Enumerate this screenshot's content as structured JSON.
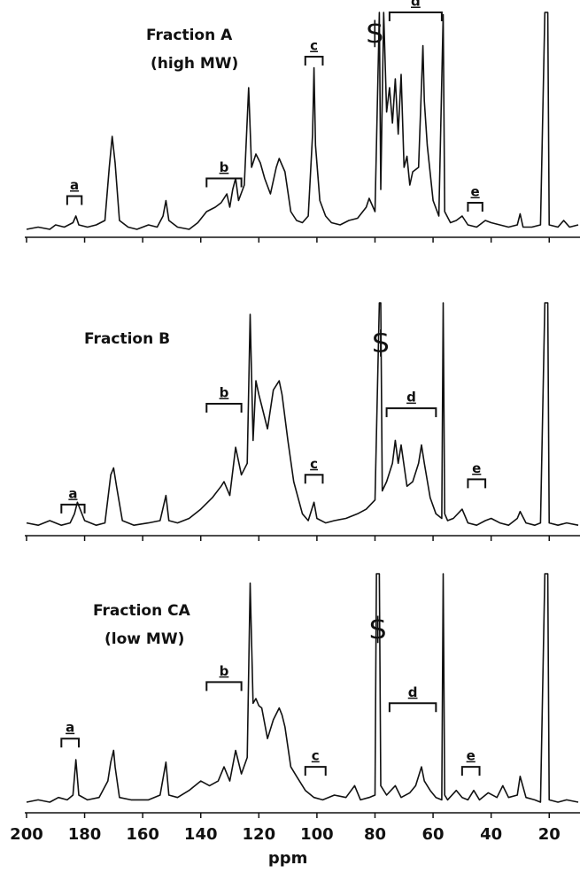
{
  "chart_data": [
    {
      "type": "line",
      "title": [
        "Fraction A",
        "(high MW)"
      ],
      "color": "#111111",
      "xlim": [
        200.6,
        9.4
      ],
      "ylim": [
        0,
        100
      ],
      "xticks": [
        200,
        180,
        160,
        140,
        120,
        100,
        80,
        60,
        40,
        20
      ],
      "show_tick_labels": false,
      "x": [
        200,
        196,
        192,
        190,
        187,
        184,
        183,
        182,
        179,
        176,
        173,
        171.5,
        170.5,
        169.5,
        168,
        165,
        162,
        158,
        155,
        153,
        152,
        151,
        148,
        144,
        141,
        138,
        135,
        133,
        131,
        130,
        129,
        128,
        127,
        125,
        123.5,
        122.5,
        121,
        119.5,
        118,
        116,
        114,
        113,
        111,
        109,
        107,
        105,
        103,
        101.5,
        101,
        100.5,
        99,
        97,
        95,
        92,
        89,
        86,
        83,
        82,
        80,
        78.5,
        78,
        77,
        76,
        75,
        74,
        73,
        72,
        71,
        70,
        69,
        68,
        67,
        65,
        63.5,
        63,
        62,
        60,
        58,
        56.5,
        56,
        54,
        52,
        50,
        48,
        45,
        42,
        40,
        37,
        34,
        31,
        30,
        29,
        26,
        23,
        21.5,
        20.5,
        20,
        17,
        15,
        13,
        10
      ],
      "values": [
        2,
        3,
        2,
        4,
        3,
        5,
        8,
        4,
        3,
        4,
        6,
        30,
        44,
        32,
        6,
        3,
        2,
        4,
        3,
        8,
        15,
        6,
        3,
        2,
        5,
        10,
        12,
        14,
        18,
        12,
        20,
        25,
        15,
        22,
        66,
        30,
        36,
        32,
        25,
        18,
        30,
        34,
        28,
        10,
        6,
        5,
        8,
        45,
        75,
        40,
        15,
        8,
        5,
        4,
        6,
        7,
        12,
        16,
        10,
        100,
        20,
        100,
        55,
        66,
        50,
        70,
        45,
        72,
        30,
        35,
        22,
        28,
        30,
        85,
        60,
        40,
        15,
        8,
        99,
        10,
        5,
        6,
        8,
        4,
        3,
        6,
        5,
        4,
        3,
        4,
        9,
        3,
        3,
        4,
        100,
        100,
        4,
        3,
        6,
        3,
        4
      ],
      "annotations": [
        {
          "label": "a",
          "x": [
            186,
            181
          ],
          "y": 17
        },
        {
          "label": "b",
          "x": [
            138,
            126
          ],
          "y": 25
        },
        {
          "label": "c",
          "x": [
            104,
            98
          ],
          "y": 80
        },
        {
          "label": "d",
          "x": [
            75,
            57
          ],
          "y": 100
        },
        {
          "label": "e",
          "x": [
            48,
            43
          ],
          "y": 14
        }
      ],
      "solvent_marker": {
        "label": "$",
        "x": 80,
        "y": 90
      }
    },
    {
      "type": "line",
      "title": [
        "Fraction B"
      ],
      "color": "#111111",
      "xlim": [
        200.6,
        9.4
      ],
      "ylim": [
        0,
        100
      ],
      "xticks": [
        200,
        180,
        160,
        140,
        120,
        100,
        80,
        60,
        40,
        20
      ],
      "show_tick_labels": false,
      "x": [
        200,
        196,
        192,
        188,
        185,
        183.5,
        182.5,
        180,
        176,
        173,
        171,
        170,
        169,
        167,
        163,
        158,
        154,
        152,
        151,
        148,
        144,
        140,
        136,
        133,
        132,
        130,
        128,
        126,
        124,
        123,
        122,
        121,
        120,
        119,
        117,
        115,
        113,
        112,
        110,
        108,
        105,
        103,
        101,
        100,
        97,
        94,
        90,
        86,
        83,
        80,
        78.5,
        78,
        77.5,
        76,
        74,
        73,
        72,
        71,
        69,
        67,
        65,
        64,
        63,
        61,
        59,
        57,
        56.5,
        56,
        55,
        53,
        50,
        48,
        45,
        42,
        40,
        37,
        34,
        31,
        30,
        28,
        25,
        23,
        21.5,
        20.5,
        20,
        17,
        14,
        10
      ],
      "values": [
        4,
        3,
        5,
        3,
        4,
        8,
        13,
        5,
        3,
        4,
        25,
        28,
        20,
        5,
        3,
        4,
        5,
        16,
        5,
        4,
        6,
        10,
        15,
        20,
        22,
        16,
        37,
        25,
        30,
        95,
        40,
        66,
        60,
        55,
        45,
        62,
        66,
        60,
        40,
        22,
        8,
        5,
        13,
        6,
        4,
        5,
        6,
        8,
        10,
        14,
        100,
        100,
        18,
        22,
        30,
        40,
        30,
        38,
        20,
        22,
        30,
        38,
        30,
        15,
        8,
        6,
        100,
        8,
        5,
        6,
        10,
        4,
        3,
        5,
        6,
        4,
        3,
        6,
        9,
        4,
        3,
        4,
        100,
        100,
        4,
        3,
        4,
        3
      ],
      "annotations": [
        {
          "label": "a",
          "x": [
            188,
            180
          ],
          "y": 12
        },
        {
          "label": "b",
          "x": [
            138,
            126
          ],
          "y": 56
        },
        {
          "label": "c",
          "x": [
            104,
            98
          ],
          "y": 25
        },
        {
          "label": "d",
          "x": [
            76,
            59
          ],
          "y": 54
        },
        {
          "label": "e",
          "x": [
            48,
            42
          ],
          "y": 23
        }
      ],
      "solvent_marker": {
        "label": "$",
        "x": 78,
        "y": 82
      }
    },
    {
      "type": "line",
      "title": [
        "Fraction CA",
        "(low MW)"
      ],
      "color": "#111111",
      "xlim": [
        200.6,
        9.4
      ],
      "ylim": [
        0,
        100
      ],
      "xticks": [
        200,
        180,
        160,
        140,
        120,
        100,
        80,
        60,
        40,
        20
      ],
      "show_tick_labels": true,
      "xlabel": "ppm",
      "x": [
        200,
        196,
        192,
        189,
        186,
        184,
        183,
        182,
        179,
        175,
        172,
        171,
        170,
        169.5,
        168,
        164,
        158,
        154,
        152,
        151,
        148,
        144,
        140,
        137,
        134,
        132,
        130,
        128,
        126,
        124,
        123,
        122,
        121,
        120,
        119,
        117,
        115,
        113,
        112,
        111,
        109,
        107,
        104,
        101,
        98,
        94,
        90,
        87,
        85,
        82,
        80,
        79.5,
        78.5,
        78,
        76,
        73,
        71,
        68,
        66,
        64,
        63,
        61,
        59,
        57,
        56.5,
        56,
        55,
        52,
        50,
        48,
        46,
        44,
        41,
        38,
        36,
        34,
        31,
        30,
        28,
        25,
        23,
        21.5,
        20.5,
        20,
        17,
        14,
        10
      ],
      "values": [
        3,
        4,
        3,
        5,
        4,
        6,
        21,
        6,
        4,
        5,
        12,
        20,
        25,
        18,
        5,
        4,
        4,
        6,
        20,
        6,
        5,
        8,
        12,
        10,
        12,
        18,
        12,
        25,
        15,
        22,
        96,
        45,
        47,
        44,
        43,
        30,
        38,
        43,
        40,
        35,
        18,
        14,
        8,
        5,
        4,
        6,
        5,
        10,
        4,
        5,
        6,
        100,
        100,
        10,
        6,
        10,
        5,
        7,
        10,
        18,
        12,
        8,
        5,
        4,
        100,
        6,
        4,
        8,
        5,
        4,
        8,
        4,
        7,
        5,
        10,
        5,
        6,
        14,
        5,
        4,
        3,
        100,
        100,
        4,
        3,
        4,
        3
      ],
      "annotations": [
        {
          "label": "a",
          "x": [
            188,
            182
          ],
          "y": 30
        },
        {
          "label": "b",
          "x": [
            138,
            126
          ],
          "y": 54
        },
        {
          "label": "c",
          "x": [
            104,
            97
          ],
          "y": 18
        },
        {
          "label": "d",
          "x": [
            75,
            59
          ],
          "y": 45
        },
        {
          "label": "e",
          "x": [
            50,
            44
          ],
          "y": 18
        }
      ],
      "solvent_marker": {
        "label": "$",
        "x": 79,
        "y": 76
      }
    }
  ]
}
